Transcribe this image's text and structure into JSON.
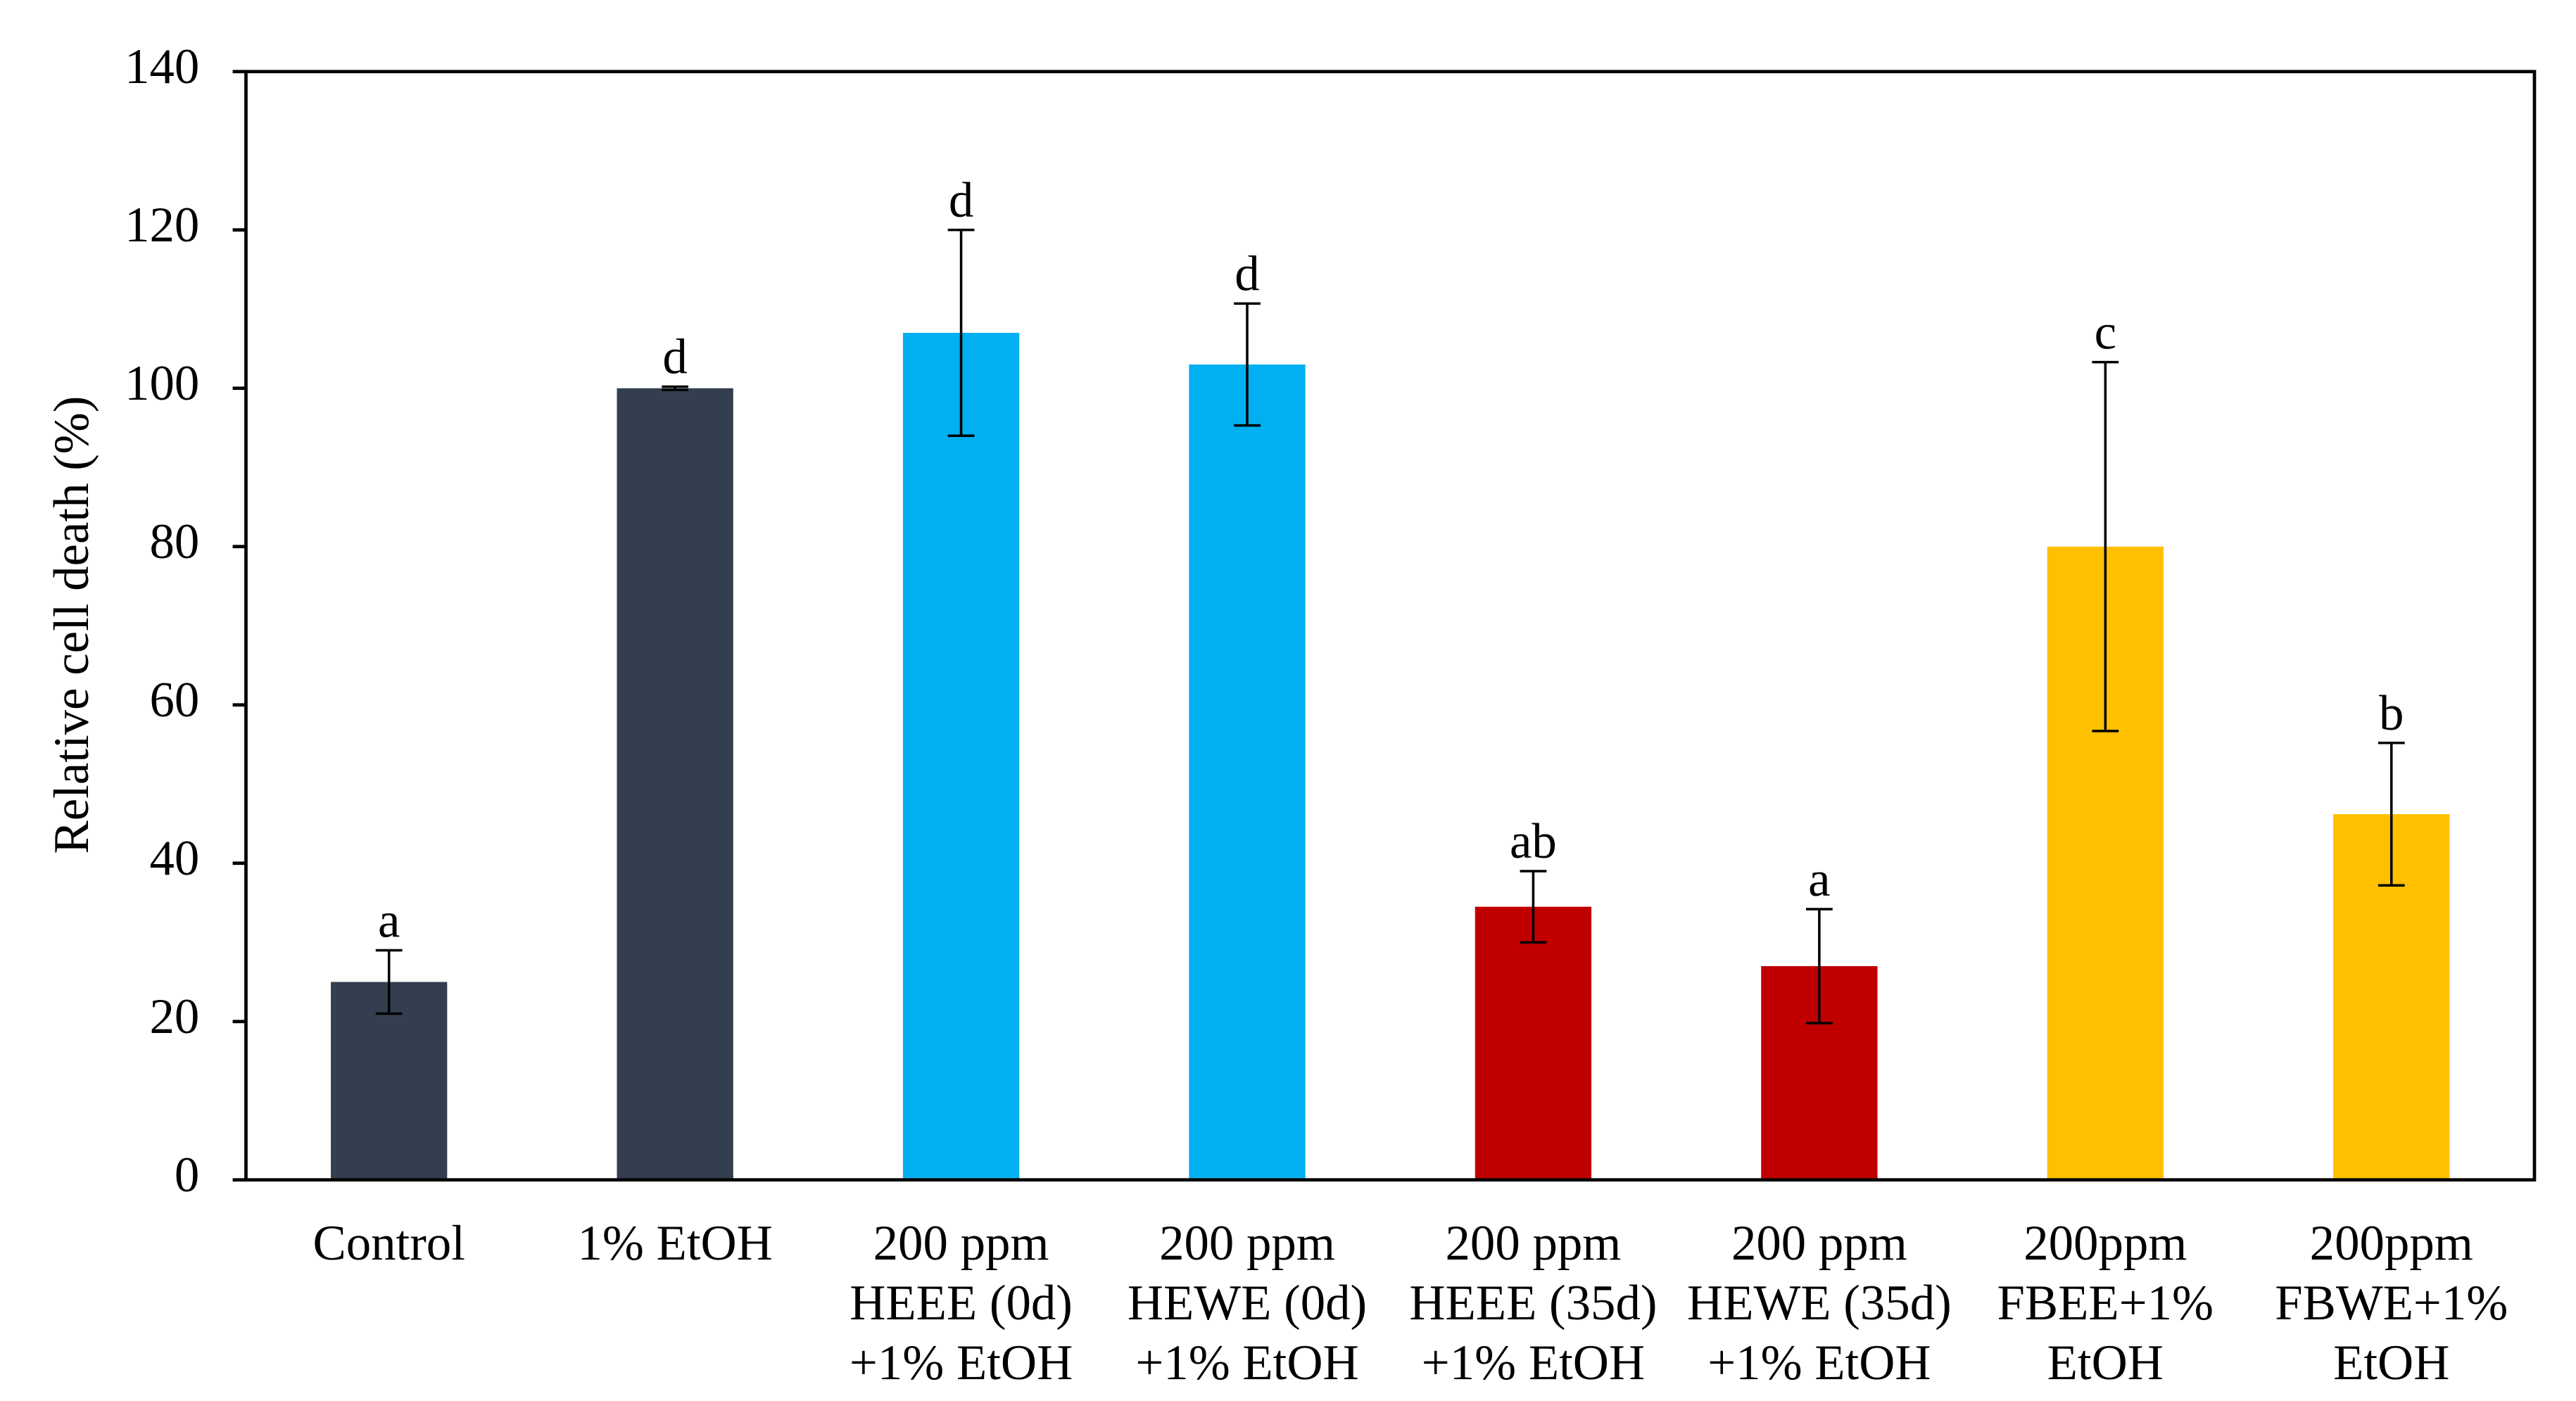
{
  "chart_data": {
    "type": "bar",
    "y_label": "Relative cell death (%)",
    "categories": [
      "Control",
      "1% EtOH",
      "200 ppm\nHEEE (0d)\n+1% EtOH",
      "200 ppm\nHEWE (0d)\n+1% EtOH",
      "200 ppm\nHEEE (35d)\n+1% EtOH",
      "200 ppm\nHEWE (35d)\n+1% EtOH",
      "200ppm\nFBEE+1%\nEtOH",
      "200ppm\nFBWE+1%\nEtOH"
    ],
    "values": [
      25,
      100,
      107,
      103,
      34.5,
      27,
      80,
      46.2
    ],
    "errors": [
      4,
      0.2,
      13,
      7.7,
      4.5,
      7.2,
      23.3,
      9
    ],
    "letters": [
      "a",
      "d",
      "d",
      "d",
      "ab",
      "a",
      "c",
      "b"
    ],
    "colors": [
      "#333f50",
      "#333f50",
      "#00b0f0",
      "#00b0f0",
      "#c00000",
      "#c00000",
      "#ffc000",
      "#ffc000"
    ],
    "ylim": [
      0,
      140
    ],
    "yticks": [
      0,
      20,
      40,
      60,
      80,
      100,
      120,
      140
    ],
    "grid": false
  }
}
